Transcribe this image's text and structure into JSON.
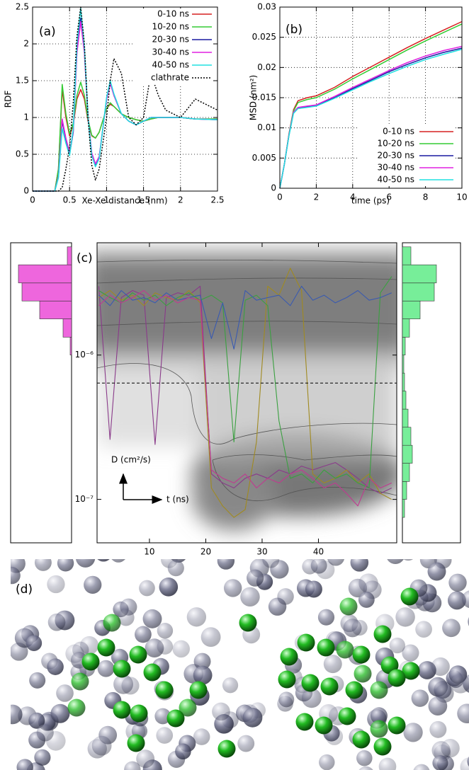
{
  "chart_data": [
    {
      "type": "line",
      "panel_label": "(a)",
      "xlabel": "Xe-Xe distance (nm)",
      "ylabel": "RDF",
      "xlim": [
        0,
        2.5
      ],
      "xticks": [
        0,
        0.5,
        1,
        1.5,
        2,
        2.5
      ],
      "ylim": [
        0,
        2.5
      ],
      "yticks": [
        0,
        0.5,
        1,
        1.5,
        2,
        2.5
      ],
      "grid": true,
      "legend": "upper right",
      "x": [
        0,
        0.3,
        0.35,
        0.4,
        0.45,
        0.5,
        0.55,
        0.6,
        0.65,
        0.7,
        0.75,
        0.8,
        0.85,
        0.9,
        1.0,
        1.05,
        1.1,
        1.2,
        1.3,
        1.4,
        1.5,
        1.6,
        1.7,
        1.8,
        2.0,
        2.2,
        2.5
      ],
      "series": [
        {
          "name": "0-10 ns",
          "color": "#d62020",
          "values": [
            0,
            0,
            0.3,
            1.38,
            1.0,
            0.75,
            0.9,
            1.25,
            1.38,
            1.25,
            0.95,
            0.75,
            0.72,
            0.8,
            1.12,
            1.18,
            1.15,
            1.05,
            1.0,
            0.97,
            0.95,
            0.98,
            1.0,
            1.0,
            1.0,
            0.98,
            0.98
          ]
        },
        {
          "name": "10-20 ns",
          "color": "#33cc33",
          "values": [
            0,
            0,
            0.3,
            1.45,
            1.05,
            0.78,
            0.92,
            1.3,
            1.48,
            1.3,
            0.97,
            0.76,
            0.72,
            0.8,
            1.12,
            1.2,
            1.15,
            1.05,
            1.0,
            0.97,
            0.95,
            0.98,
            1.0,
            1.0,
            1.0,
            0.98,
            0.98
          ]
        },
        {
          "name": "20-30 ns",
          "color": "#1a1aa0",
          "values": [
            0,
            0,
            0.2,
            0.95,
            0.7,
            0.5,
            0.8,
            1.9,
            2.35,
            1.9,
            1.0,
            0.5,
            0.35,
            0.45,
            1.25,
            1.48,
            1.3,
            1.05,
            0.95,
            0.9,
            0.95,
            1.0,
            1.0,
            1.0,
            1.0,
            0.98,
            0.97
          ]
        },
        {
          "name": "30-40 ns",
          "color": "#e020e0",
          "values": [
            0,
            0,
            0.2,
            0.98,
            0.72,
            0.52,
            0.82,
            1.88,
            2.3,
            1.88,
            1.0,
            0.52,
            0.37,
            0.47,
            1.24,
            1.46,
            1.3,
            1.05,
            0.95,
            0.9,
            0.95,
            1.0,
            1.0,
            1.0,
            1.0,
            0.98,
            0.97
          ]
        },
        {
          "name": "40-50 ns",
          "color": "#20e0e0",
          "values": [
            0,
            0,
            0.18,
            0.85,
            0.65,
            0.48,
            0.85,
            2.0,
            2.48,
            1.95,
            1.0,
            0.48,
            0.33,
            0.44,
            1.27,
            1.5,
            1.32,
            1.05,
            0.95,
            0.9,
            0.95,
            1.0,
            1.0,
            1.0,
            1.0,
            0.98,
            0.97
          ]
        },
        {
          "name": "clathrate",
          "color": "#000000",
          "style": "dotted",
          "values": [
            0,
            0,
            0,
            0.05,
            0.3,
            0.6,
            1.2,
            2.1,
            2.5,
            2.0,
            1.0,
            0.35,
            0.15,
            0.3,
            1.0,
            1.5,
            1.8,
            1.6,
            1.0,
            0.9,
            1.0,
            1.6,
            1.3,
            1.1,
            1.0,
            1.25,
            1.1
          ]
        }
      ]
    },
    {
      "type": "line",
      "panel_label": "(b)",
      "xlabel": "time (ps)",
      "ylabel": "MSD (nm²)",
      "xlim": [
        0,
        10
      ],
      "xticks": [
        0,
        2,
        4,
        6,
        8,
        10
      ],
      "ylim": [
        0,
        0.03
      ],
      "yticks": [
        0,
        0.005,
        0.01,
        0.015,
        0.02,
        0.025,
        0.03
      ],
      "grid": true,
      "legend": "lower right",
      "x": [
        0,
        0.25,
        0.5,
        0.75,
        1,
        1.5,
        2,
        3,
        4,
        5,
        6,
        7,
        8,
        9,
        10
      ],
      "series": [
        {
          "name": "0-10 ns",
          "color": "#d62020",
          "values": [
            0,
            0.004,
            0.009,
            0.013,
            0.0145,
            0.015,
            0.0153,
            0.0167,
            0.0185,
            0.0201,
            0.0217,
            0.0233,
            0.0248,
            0.0262,
            0.0276
          ]
        },
        {
          "name": "10-20 ns",
          "color": "#33cc33",
          "values": [
            0,
            0.004,
            0.0089,
            0.0128,
            0.0142,
            0.0147,
            0.015,
            0.0164,
            0.0181,
            0.0197,
            0.0213,
            0.0229,
            0.0244,
            0.0258,
            0.0272
          ]
        },
        {
          "name": "20-30 ns",
          "color": "#1a1aa0",
          "values": [
            0,
            0.004,
            0.0088,
            0.0125,
            0.0133,
            0.0135,
            0.0137,
            0.015,
            0.0165,
            0.0179,
            0.0193,
            0.0205,
            0.0216,
            0.0225,
            0.0232
          ]
        },
        {
          "name": "30-40 ns",
          "color": "#e020e0",
          "values": [
            0,
            0.004,
            0.0088,
            0.0126,
            0.0134,
            0.0136,
            0.0138,
            0.0152,
            0.0167,
            0.0181,
            0.0195,
            0.0208,
            0.0219,
            0.0228,
            0.0235
          ]
        },
        {
          "name": "40-50 ns",
          "color": "#20e0e0",
          "values": [
            0,
            0.004,
            0.0087,
            0.0124,
            0.0132,
            0.0134,
            0.0136,
            0.0149,
            0.0163,
            0.0177,
            0.019,
            0.0202,
            0.0213,
            0.0222,
            0.023
          ]
        }
      ]
    },
    {
      "type": "line",
      "panel_label": "(c)",
      "xlabel": "t (ns)",
      "ylabel": "D (cm²/s)",
      "yscale": "log",
      "xlim": [
        0.7,
        53.9
      ],
      "xticks": [
        10,
        20,
        30,
        40
      ],
      "ylim": [
        5e-08,
        6e-06
      ],
      "yticks": [
        {
          "value": 1e-06,
          "label": "10⁻⁶"
        },
        {
          "value": 1e-07,
          "label": "10⁻⁷"
        }
      ],
      "grid": false,
      "threshold": 6.4e-07,
      "x": [
        1,
        3,
        5,
        7,
        9,
        11,
        13,
        15,
        17,
        19,
        21,
        23,
        25,
        27,
        29,
        31,
        33,
        35,
        37,
        39,
        41,
        43,
        45,
        47,
        49,
        51,
        53
      ],
      "series": [
        {
          "color": "#8a3a8a",
          "values": [
            3e-06,
            2.6e-07,
            2.5e-06,
            2.8e-06,
            2.6e-06,
            2.4e-07,
            2.5e-06,
            2.7e-06,
            2.6e-06,
            3e-06,
            1.5e-07,
            1.3e-07,
            1.2e-07,
            1.4e-07,
            1.5e-07,
            1.4e-07,
            1.6e-07,
            1.5e-07,
            1.7e-07,
            1.6e-07,
            1.7e-07,
            1.8e-07,
            1.6e-07,
            1.4e-07,
            1.2e-07,
            1.1e-07,
            1.2e-07
          ]
        },
        {
          "color": "#a08a20",
          "values": [
            2.5e-06,
            2.8e-06,
            2.4e-06,
            2.6e-06,
            2.2e-06,
            2.7e-06,
            2.5e-06,
            2.4e-06,
            2.8e-06,
            2.3e-06,
            1.2e-07,
            9e-08,
            7.5e-08,
            8.5e-08,
            2.5e-07,
            3e-06,
            2.6e-06,
            4e-06,
            2.8e-06,
            1.5e-07,
            1.3e-07,
            1.4e-07,
            1.6e-07,
            1.3e-07,
            1.5e-07,
            1.1e-07,
            1e-07
          ]
        },
        {
          "color": "#3aa040",
          "values": [
            2.8e-06,
            2.5e-06,
            2.3e-06,
            2.7e-06,
            2.4e-06,
            2.6e-06,
            2.2e-06,
            2.5e-06,
            2.7e-06,
            2.4e-06,
            2.6e-06,
            2.3e-06,
            2.5e-07,
            2.4e-06,
            2.6e-06,
            2.2e-06,
            3.5e-07,
            1.4e-07,
            1.5e-07,
            1.3e-07,
            1.6e-07,
            1.4e-07,
            1.5e-07,
            1.3e-07,
            1.2e-07,
            2.7e-06,
            3.5e-06
          ]
        },
        {
          "color": "#3a5ab0",
          "values": [
            2.6e-06,
            2.2e-06,
            2.8e-06,
            2.4e-06,
            2.5e-06,
            2.3e-06,
            2.7e-06,
            2.4e-06,
            2.5e-06,
            2.6e-06,
            1.3e-06,
            2.3e-06,
            1.1e-06,
            2.8e-06,
            2.4e-06,
            2.5e-06,
            2.6e-06,
            2.2e-06,
            3e-06,
            2.4e-06,
            2.6e-06,
            2.3e-06,
            2.5e-06,
            2.8e-06,
            2.4e-06,
            2.5e-06,
            2.7e-06
          ]
        },
        {
          "color": "#c03a90",
          "values": [
            2.2e-06,
            2.6e-06,
            2.3e-06,
            2.5e-06,
            2.8e-06,
            2.4e-06,
            2.6e-06,
            2.3e-06,
            2.5e-06,
            2.4e-06,
            1.6e-07,
            1.4e-07,
            1.3e-07,
            1.5e-07,
            1.2e-07,
            1.4e-07,
            1.3e-07,
            1.5e-07,
            1.6e-07,
            1.4e-07,
            1.2e-07,
            1.3e-07,
            1.1e-07,
            9e-08,
            1.4e-07,
            1.2e-07,
            1.3e-07
          ]
        }
      ],
      "histograms": [
        {
          "side": "left",
          "color": "#ee66dd",
          "bins": [
            5.62e-08,
            7.5e-08,
            1e-07,
            1.33e-07,
            1.78e-07,
            2.37e-07,
            3.16e-07,
            4.22e-07,
            5.62e-07,
            7.5e-07,
            1e-06,
            1.33e-06,
            1.78e-06,
            2.37e-06,
            3.16e-06,
            4.22e-06,
            5.62e-06
          ],
          "counts": [
            0,
            0,
            0,
            0,
            0,
            0,
            0,
            0,
            0,
            0,
            2,
            12,
            45,
            70,
            75,
            6
          ]
        },
        {
          "side": "right",
          "color": "#77ee99",
          "bins": [
            5.62e-08,
            7.5e-08,
            1e-07,
            1.33e-07,
            1.78e-07,
            2.37e-07,
            3.16e-07,
            4.22e-07,
            5.62e-07,
            7.5e-07,
            1e-06,
            1.33e-06,
            1.78e-06,
            2.37e-06,
            3.16e-06,
            4.22e-06,
            5.62e-06
          ],
          "counts": [
            0,
            3,
            6,
            10,
            14,
            12,
            8,
            5,
            3,
            2,
            4,
            10,
            25,
            45,
            48,
            12
          ]
        }
      ]
    }
  ],
  "panel_d": {
    "label": "(d)"
  }
}
